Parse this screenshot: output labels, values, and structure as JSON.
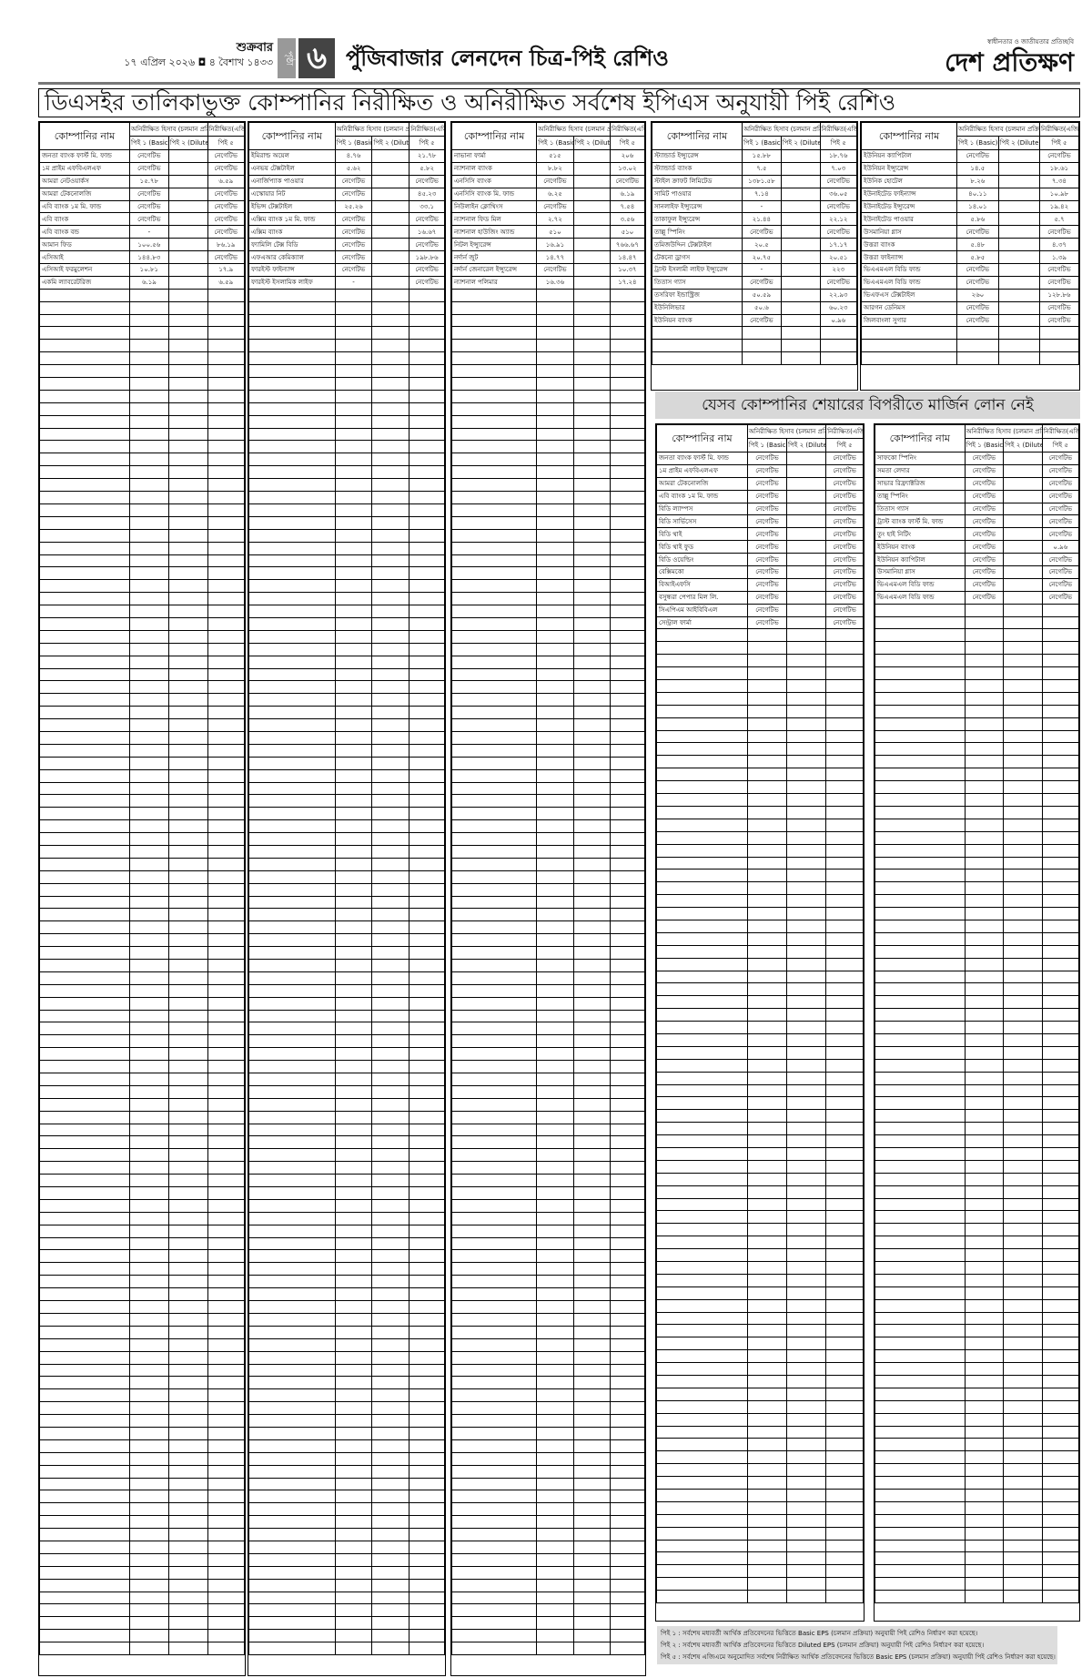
{
  "header": {
    "day": "শুক্রবার",
    "date": "১৭ এপ্রিল ২০২৬ ◘ ৪ বৈশাখ ১৪৩৩",
    "page_label": "পৃষ্ঠা",
    "page_number": "৬",
    "section_title": "পুঁজিবাজার লেনদেন চিত্র-পিই রেশিও",
    "logo_tagline": "স্বাধীনতার ও জাতীয়তার প্রতিচ্ছবি",
    "logo_name": "দেশ প্রতিক্ষণ"
  },
  "main_title": "ডিএসইর তালিকাভুক্ত কোম্পানির নিরীক্ষিত ও অনিরীক্ষিত সর্বশেষ ইপিএস অনুযায়ী পিই রেশিও",
  "margin_title": "যেসব কোম্পানির শেয়ারের বিপরীতে মার্জিন লোন নেই",
  "columns": {
    "company": "কোম্পানির নাম",
    "unaudited": "অনিরীক্ষিত হিসাব (চলমান প্রক্রিয়া অনুযায়ী)",
    "audited": "নিরীক্ষিত(এজিএম অনুযায়ী)",
    "pe1": "পিই ১ (Basic)",
    "pe2": "পিই ২ (Diluted)",
    "pe5": "পিই ৫"
  },
  "tables": [
    {
      "rows": [
        [
          "জনতা ব্যাংক ফার্স্ট মি. ফান্ড",
          "নেগেটিভ",
          "",
          "নেগেটিভ"
        ],
        [
          "১ম প্রাইম এফবিএলএফ",
          "নেগেটিভ",
          "",
          "নেগেটিভ"
        ],
        [
          "আমরা নেটওয়ার্কস",
          "১৫.৭৮",
          "",
          "৬.৫৯"
        ],
        [
          "আমরা টেকনোলজি",
          "নেগেটিভ",
          "",
          "নেগেটিভ"
        ],
        [
          "এবি ব্যাংক ১ম মি. ফান্ড",
          "নেগেটিভ",
          "",
          "নেগেটিভ"
        ],
        [
          "এবি ব্যাংক",
          "নেগেটিভ",
          "",
          "নেগেটিভ"
        ],
        [
          "এবি ব্যাংক বন্ড",
          "-",
          "",
          "নেগেটিভ"
        ],
        [
          "আমান ফিড",
          "১০০.৫৬",
          "",
          "৮৬.১৯"
        ],
        [
          "এসিআই",
          "১৪৪.৮৩",
          "",
          "নেগেটিভ"
        ],
        [
          "এসিআই ফরমুলেশন",
          "১০.৮১",
          "",
          "১৭.৯"
        ],
        [
          "একমি ল্যাবরেটরিজ",
          "৬.১৯",
          "",
          "৬.৫৯"
        ]
      ]
    },
    {
      "rows": [
        [
          "ইমিরাল্ড অয়েল",
          "৪.৭৬",
          "",
          "২১.৭৮"
        ],
        [
          "এনভয় টেক্সটাইল",
          "৫.৬২",
          "",
          "৫.৮২"
        ],
        [
          "এনার্জিপ্যাক পাওয়ার",
          "নেগেটিভ",
          "",
          "নেগেটিভ"
        ],
        [
          "এস্কোয়ার নিট",
          "নেগেটিভ",
          "",
          "৪৫.২৩"
        ],
        [
          "ইভিন্স টেক্সটাইল",
          "২৫.২৬",
          "",
          "৩৩.১"
        ],
        [
          "এক্সিম ব্যাংক ১ম মি. ফান্ড",
          "নেগেটিভ",
          "",
          "নেগেটিভ"
        ],
        [
          "এক্সিম ব্যাংক",
          "নেগেটিভ",
          "",
          "১৬.৬৭"
        ],
        [
          "ফ্যামিলি টেক্স বিডি",
          "নেগেটিভ",
          "",
          "নেগেটিভ"
        ],
        [
          "এফএআর কেমিক্যাল",
          "নেগেটিভ",
          "",
          "১৯৮.৮৬"
        ],
        [
          "ফারইস্ট ফাইন্যান্স",
          "নেগেটিভ",
          "",
          "নেগেটিভ"
        ],
        [
          "ফারইস্ট ইসলামিক লাইফ",
          "-",
          "",
          "নেগেটিভ"
        ]
      ]
    },
    {
      "rows": [
        [
          "নাভানা ফার্মা",
          "৫১৫",
          "",
          "২০৬"
        ],
        [
          "ন্যাশনাল ব্যাংক",
          "৮.৮২",
          "",
          "১৩.০২"
        ],
        [
          "এনসিসি ব্যাংক",
          "নেগেটিভ",
          "",
          "নেগেটিভ"
        ],
        [
          "এনসিসি ব্যাংক মি. ফান্ড",
          "৬.২৫",
          "",
          "৬.১৯"
        ],
        [
          "নিউলাইন ক্লোথিংস",
          "নেগেটিভ",
          "",
          "৭.৫৪"
        ],
        [
          "ন্যাশনাল ফিড মিল",
          "২.৭২",
          "",
          "৩.৫৬"
        ],
        [
          "ন্যাশনাল হাউজিং অ্যান্ড",
          "৫১০",
          "",
          "৫১০"
        ],
        [
          "নিটল ইন্স্যুরেন্স",
          "১৬.৯১",
          "",
          "৭৬৬.৬৭"
        ],
        [
          "নর্দার্ন জুট",
          "১৪.৭৭",
          "",
          "১৪.৪৭"
        ],
        [
          "নর্দার্ন জেনারেল ইন্স্যুরেন্স",
          "নেগেটিভ",
          "",
          "১০.৩৭"
        ],
        [
          "ন্যাশনাল পলিমার",
          "১৬.৩৬",
          "",
          "১৭.২৪"
        ]
      ]
    },
    {
      "rows": [
        [
          "স্ট্যান্ডার্ড ইন্স্যুরেন্স",
          "১৫.৮৮",
          "",
          "১৮.৭৬"
        ],
        [
          "স্ট্যান্ডার্ড ব্যাংক",
          "৭.৫",
          "",
          "৭.০৩"
        ],
        [
          "স্টাইল ক্রাফট লিমিটেড",
          "১৩৮১.৫৮",
          "",
          "নেগেটিভ"
        ],
        [
          "সামিট পাওয়ার",
          "৭.১৪",
          "",
          "৩৬.০৫"
        ],
        [
          "সানলাইফ ইন্স্যুরেন্স",
          "-",
          "",
          "নেগেটিভ"
        ],
        [
          "তাকাফুল ইন্স্যুরেন্স",
          "২১.৪৪",
          "",
          "২২.১২"
        ],
        [
          "তাল্লু স্পিনিং",
          "নেগেটিভ",
          "",
          "নেগেটিভ"
        ],
        [
          "তমিজউদ্দিন টেক্সটাইল",
          "২০.৫",
          "",
          "১৭.১৭"
        ],
        [
          "টেকনো ড্রাগস",
          "২০.৭৫",
          "",
          "২০.৫১"
        ],
        [
          "ট্রাস্ট ইসলামী লাইফ ইন্স্যুরেন্স",
          "-",
          "",
          "২২৩"
        ],
        [
          "তিতাস গ্যাস",
          "নেগেটিভ",
          "",
          "নেগেটিভ"
        ],
        [
          "তসরিফা ইন্ডাস্ট্রিজ",
          "৫০.৫৯",
          "",
          "২২.৯৩"
        ],
        [
          "ইউনিলিভার",
          "৫০.৬",
          "",
          "৬০.২৩"
        ],
        [
          "ইউনিয়ন ব্যাংক",
          "নেগেটিভ",
          "",
          "০.৯৬"
        ]
      ]
    },
    {
      "rows": [
        [
          "ইউনিয়ন ক্যাপিটাল",
          "নেগেটিভ",
          "",
          "নেগেটিভ"
        ],
        [
          "ইউনিয়ন ইন্স্যুরেন্স",
          "১৪.৫",
          "",
          "১৮.৬১"
        ],
        [
          "ইউনিক হোটেল",
          "৮.২৬",
          "",
          "৭.৩৪"
        ],
        [
          "ইউনাইটেড ফাইন্যান্স",
          "৪০.১১",
          "",
          "১০.৯৮"
        ],
        [
          "ইউনাইটেড ইন্স্যুরেন্স",
          "১৪.০১",
          "",
          "১৯.৪২"
        ],
        [
          "ইউনাইটেড পাওয়ার",
          "৫.৮৬",
          "",
          "৫.৭"
        ],
        [
          "উসমানিয়া গ্লাস",
          "নেগেটিভ",
          "",
          "নেগেটিভ"
        ],
        [
          "উত্তরা ব্যাংক",
          "৫.৪৮",
          "",
          "৪.৩৭"
        ],
        [
          "উত্তরা ফাইন্যান্স",
          "৫.৮৫",
          "",
          "১.৩৯"
        ],
        [
          "ভিএএমএল বিডি ফান্ড",
          "নেগেটিভ",
          "",
          "নেগেটিভ"
        ],
        [
          "ভিএএমএল বিডি ফান্ড",
          "নেগেটিভ",
          "",
          "নেগেটিভ"
        ],
        [
          "ভিএফএস টেক্সটাইল",
          "২৬০",
          "",
          "১২৮.৮৬"
        ],
        [
          "আরগন ডেনিমস",
          "নেগেটিভ",
          "",
          "নেগেটিভ"
        ],
        [
          "জিলবাংলা সুগার",
          "নেগেটিভ",
          "",
          "নেগেটিভ"
        ]
      ]
    },
    {
      "rows": [
        [
          "জনতা ব্যাংক ফার্স্ট মি. ফান্ড",
          "নেগেটিভ",
          "",
          "নেগেটিভ"
        ],
        [
          "১ম প্রাইম এফবিএলএফ",
          "নেগেটিভ",
          "",
          "নেগেটিভ"
        ],
        [
          "আমরা টেকনোলজি",
          "নেগেটিভ",
          "",
          "নেগেটিভ"
        ],
        [
          "এবি ব্যাংক ১ম মি. ফান্ড",
          "নেগেটিভ",
          "",
          "নেগেটিভ"
        ],
        [
          "বিডি ল্যাম্পস",
          "নেগেটিভ",
          "",
          "নেগেটিভ"
        ],
        [
          "বিডি সার্ভিসেস",
          "নেগেটিভ",
          "",
          "নেগেটিভ"
        ],
        [
          "বিডি থাই",
          "নেগেটিভ",
          "",
          "নেগেটিভ"
        ],
        [
          "বিডি থাই ফুড",
          "নেগেটিভ",
          "",
          "নেগেটিভ"
        ],
        [
          "বিডি ওয়েল্ডিং",
          "নেগেটিভ",
          "",
          "নেগেটিভ"
        ],
        [
          "বেক্সিমকো",
          "নেগেটিভ",
          "",
          "নেগেটিভ"
        ],
        [
          "বিআইএফসি",
          "নেগেটিভ",
          "",
          "নেগেটিভ"
        ],
        [
          "বসুন্ধরা পেপার মিল লি.",
          "নেগেটিভ",
          "",
          "নেগেটিভ"
        ],
        [
          "সিএপিএম আইবিবিএল",
          "নেগেটিভ",
          "",
          "নেগেটিভ"
        ],
        [
          "সেন্ট্রাল ফার্মা",
          "নেগেটিভ",
          "",
          "নেগেটিভ"
        ]
      ]
    },
    {
      "rows": [
        [
          "সাফকো স্পিনিং",
          "নেগেটিভ",
          "",
          "নেগেটিভ"
        ],
        [
          "সমতা লেদার",
          "নেগেটিভ",
          "",
          "নেগেটিভ"
        ],
        [
          "সাভার রিফ্র্যাক্টরিজ",
          "নেগেটিভ",
          "",
          "নেগেটিভ"
        ],
        [
          "তাল্লু স্পিনিং",
          "নেগেটিভ",
          "",
          "নেগেটিভ"
        ],
        [
          "তিতাস গ্যাস",
          "নেগেটিভ",
          "",
          "নেগেটিভ"
        ],
        [
          "ট্রাস্ট ব্যাংক ফার্স্ট মি. ফান্ড",
          "নেগেটিভ",
          "",
          "নেগেটিভ"
        ],
        [
          "তুং হাই নিটিং",
          "নেগেটিভ",
          "",
          "নেগেটিভ"
        ],
        [
          "ইউনিয়ন ব্যাংক",
          "নেগেটিভ",
          "",
          "০.৯৬"
        ],
        [
          "ইউনিয়ন ক্যাপিটাল",
          "নেগেটিভ",
          "",
          "নেগেটিভ"
        ],
        [
          "উসমানিয়া গ্লাস",
          "নেগেটিভ",
          "",
          "নেগেটিভ"
        ],
        [
          "ভিএএমএল বিডি ফান্ড",
          "নেগেটিভ",
          "",
          "নেগেটিভ"
        ],
        [
          "ভিএএমএল বিডি ফান্ড",
          "নেগেটিভ",
          "",
          "নেগেটিভ"
        ]
      ]
    }
  ],
  "notes": [
    "পিই ১ : সর্বশেষ মধ্যবর্তী আর্থিক প্রতিবেদনের ভিত্তিতে Basic EPS (চলমান প্রক্রিয়া) অনুযায়ী পিই রেশিও নির্ধারণ করা হয়েছে।",
    "পিই ২ : সর্বশেষ মধ্যবর্তী আর্থিক প্রতিবেদনের ভিত্তিতে Diluted EPS (চলমান প্রক্রিয়া) অনুযায়ী পিই রেশিও নির্ধারণ করা হয়েছে।",
    "পিই ৫ : সর্বশেষ এজিএমে অনুমোদিত সর্বশেষ নিরীক্ষিত আর্থিক প্রতিবেদনের ভিত্তিতে Basic EPS (চলমান প্রক্রিয়া) অনুযায়ী পিই রেশিও নির্ধারণ করা হয়েছে।"
  ]
}
